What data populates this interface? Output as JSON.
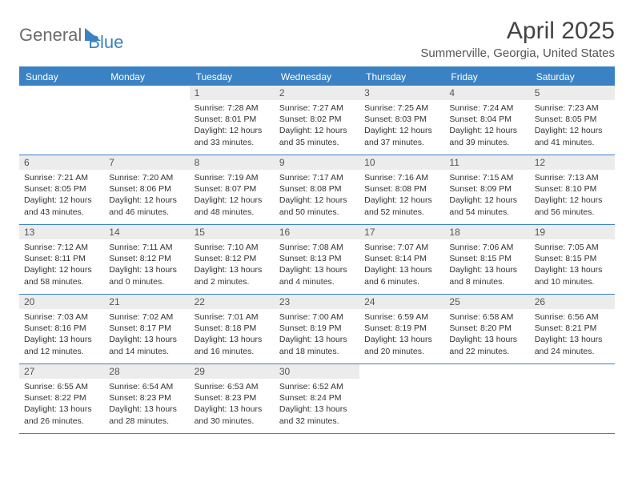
{
  "logo": {
    "part1": "General",
    "part2": "Blue"
  },
  "title": "April 2025",
  "location": "Summerville, Georgia, United States",
  "colors": {
    "accent_blue": "#3b82c4",
    "band_gray": "#ececec",
    "text_dark": "#333333",
    "text_mid": "#555555",
    "logo_gray": "#6b6b6b",
    "white": "#ffffff"
  },
  "day_headers": [
    "Sunday",
    "Monday",
    "Tuesday",
    "Wednesday",
    "Thursday",
    "Friday",
    "Saturday"
  ],
  "weeks": [
    [
      null,
      null,
      {
        "n": "1",
        "sr": "7:28 AM",
        "ss": "8:01 PM",
        "dl": "12 hours and 33 minutes."
      },
      {
        "n": "2",
        "sr": "7:27 AM",
        "ss": "8:02 PM",
        "dl": "12 hours and 35 minutes."
      },
      {
        "n": "3",
        "sr": "7:25 AM",
        "ss": "8:03 PM",
        "dl": "12 hours and 37 minutes."
      },
      {
        "n": "4",
        "sr": "7:24 AM",
        "ss": "8:04 PM",
        "dl": "12 hours and 39 minutes."
      },
      {
        "n": "5",
        "sr": "7:23 AM",
        "ss": "8:05 PM",
        "dl": "12 hours and 41 minutes."
      }
    ],
    [
      {
        "n": "6",
        "sr": "7:21 AM",
        "ss": "8:05 PM",
        "dl": "12 hours and 43 minutes."
      },
      {
        "n": "7",
        "sr": "7:20 AM",
        "ss": "8:06 PM",
        "dl": "12 hours and 46 minutes."
      },
      {
        "n": "8",
        "sr": "7:19 AM",
        "ss": "8:07 PM",
        "dl": "12 hours and 48 minutes."
      },
      {
        "n": "9",
        "sr": "7:17 AM",
        "ss": "8:08 PM",
        "dl": "12 hours and 50 minutes."
      },
      {
        "n": "10",
        "sr": "7:16 AM",
        "ss": "8:08 PM",
        "dl": "12 hours and 52 minutes."
      },
      {
        "n": "11",
        "sr": "7:15 AM",
        "ss": "8:09 PM",
        "dl": "12 hours and 54 minutes."
      },
      {
        "n": "12",
        "sr": "7:13 AM",
        "ss": "8:10 PM",
        "dl": "12 hours and 56 minutes."
      }
    ],
    [
      {
        "n": "13",
        "sr": "7:12 AM",
        "ss": "8:11 PM",
        "dl": "12 hours and 58 minutes."
      },
      {
        "n": "14",
        "sr": "7:11 AM",
        "ss": "8:12 PM",
        "dl": "13 hours and 0 minutes."
      },
      {
        "n": "15",
        "sr": "7:10 AM",
        "ss": "8:12 PM",
        "dl": "13 hours and 2 minutes."
      },
      {
        "n": "16",
        "sr": "7:08 AM",
        "ss": "8:13 PM",
        "dl": "13 hours and 4 minutes."
      },
      {
        "n": "17",
        "sr": "7:07 AM",
        "ss": "8:14 PM",
        "dl": "13 hours and 6 minutes."
      },
      {
        "n": "18",
        "sr": "7:06 AM",
        "ss": "8:15 PM",
        "dl": "13 hours and 8 minutes."
      },
      {
        "n": "19",
        "sr": "7:05 AM",
        "ss": "8:15 PM",
        "dl": "13 hours and 10 minutes."
      }
    ],
    [
      {
        "n": "20",
        "sr": "7:03 AM",
        "ss": "8:16 PM",
        "dl": "13 hours and 12 minutes."
      },
      {
        "n": "21",
        "sr": "7:02 AM",
        "ss": "8:17 PM",
        "dl": "13 hours and 14 minutes."
      },
      {
        "n": "22",
        "sr": "7:01 AM",
        "ss": "8:18 PM",
        "dl": "13 hours and 16 minutes."
      },
      {
        "n": "23",
        "sr": "7:00 AM",
        "ss": "8:19 PM",
        "dl": "13 hours and 18 minutes."
      },
      {
        "n": "24",
        "sr": "6:59 AM",
        "ss": "8:19 PM",
        "dl": "13 hours and 20 minutes."
      },
      {
        "n": "25",
        "sr": "6:58 AM",
        "ss": "8:20 PM",
        "dl": "13 hours and 22 minutes."
      },
      {
        "n": "26",
        "sr": "6:56 AM",
        "ss": "8:21 PM",
        "dl": "13 hours and 24 minutes."
      }
    ],
    [
      {
        "n": "27",
        "sr": "6:55 AM",
        "ss": "8:22 PM",
        "dl": "13 hours and 26 minutes."
      },
      {
        "n": "28",
        "sr": "6:54 AM",
        "ss": "8:23 PM",
        "dl": "13 hours and 28 minutes."
      },
      {
        "n": "29",
        "sr": "6:53 AM",
        "ss": "8:23 PM",
        "dl": "13 hours and 30 minutes."
      },
      {
        "n": "30",
        "sr": "6:52 AM",
        "ss": "8:24 PM",
        "dl": "13 hours and 32 minutes."
      },
      null,
      null,
      null
    ]
  ],
  "labels": {
    "sunrise": "Sunrise:",
    "sunset": "Sunset:",
    "daylight": "Daylight:"
  }
}
